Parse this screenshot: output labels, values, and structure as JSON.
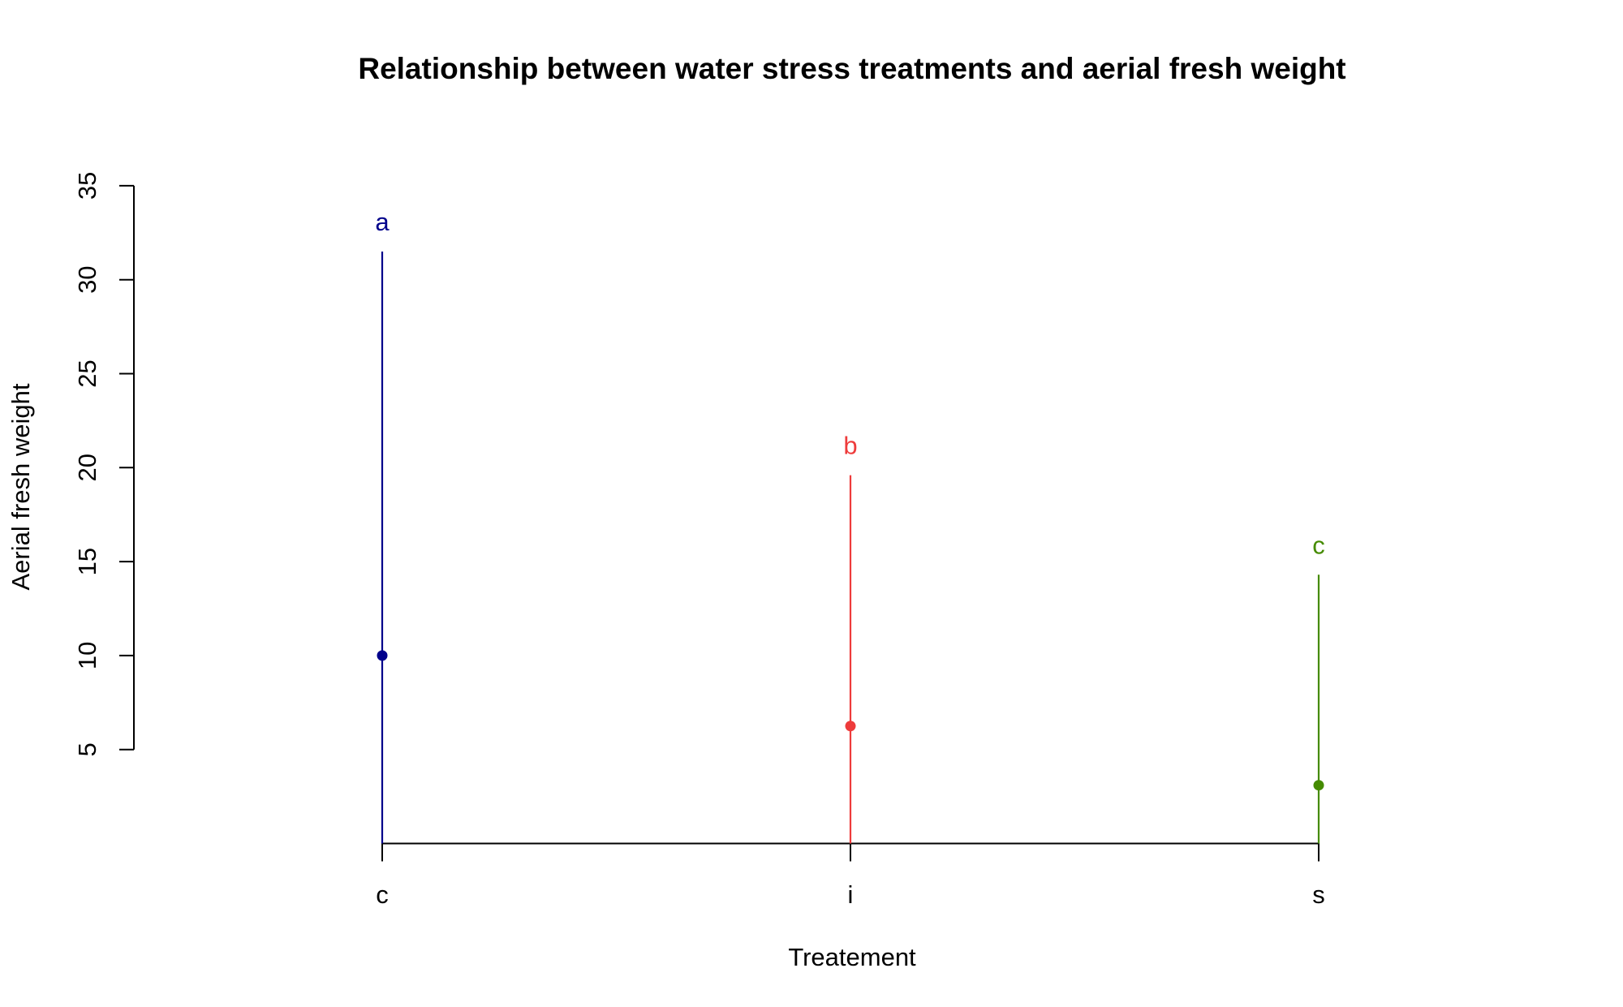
{
  "chart_data": {
    "type": "scatter",
    "title": "Relationship between water stress treatments and aerial fresh weight",
    "xlabel": "Treatement",
    "ylabel": "Aerial fresh weight",
    "categories": [
      "c",
      "i",
      "s"
    ],
    "ylim": [
      0,
      35
    ],
    "yticks": [
      5,
      10,
      15,
      20,
      25,
      30,
      35
    ],
    "grid": false,
    "legend": "none",
    "series": [
      {
        "category": "c",
        "mean": 10.0,
        "lower": 0.0,
        "upper": 31.5,
        "letter": "a",
        "color": "#00008B"
      },
      {
        "category": "i",
        "mean": 6.25,
        "lower": 0.0,
        "upper": 19.6,
        "letter": "b",
        "color": "#EE3B3B"
      },
      {
        "category": "s",
        "mean": 3.1,
        "lower": 0.0,
        "upper": 14.3,
        "letter": "c",
        "color": "#458B00"
      }
    ]
  }
}
